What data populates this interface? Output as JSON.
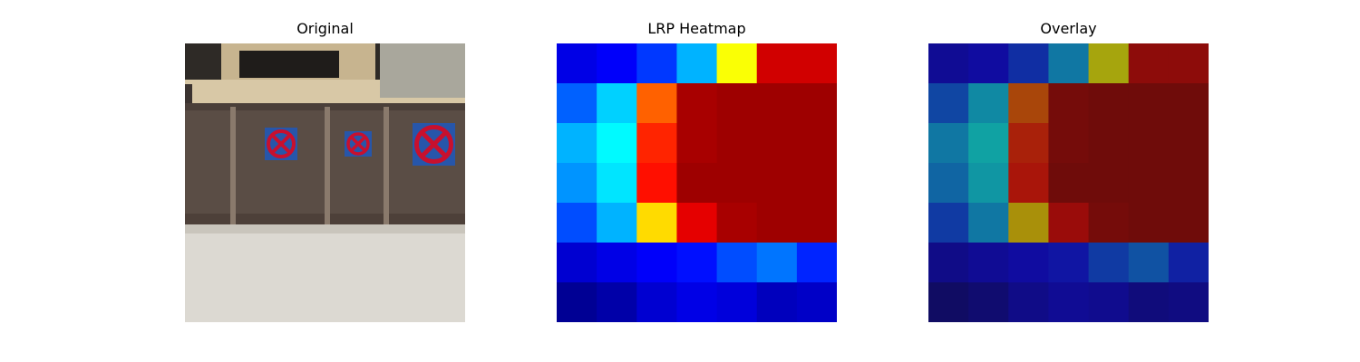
{
  "figure": {
    "panels": [
      {
        "title": "Original"
      },
      {
        "title": "LRP Heatmap"
      },
      {
        "title": "Overlay"
      }
    ]
  },
  "chart_data": [
    {
      "type": "image",
      "title": "Original",
      "scene": {
        "description_colors": {
          "sky_ceiling": "#3a3530",
          "building_wall": "#c9b89a",
          "fence": "#5b4e46",
          "fence_post": "#8a7b6e",
          "ground": "#d9d6cf",
          "sign_background": "#2553a8",
          "sign_ring": "#c8102e"
        }
      }
    },
    {
      "type": "heatmap",
      "title": "LRP Heatmap",
      "colormap": "jet",
      "rows": 7,
      "cols": 7,
      "values": [
        [
          0.1,
          0.12,
          0.18,
          0.3,
          0.62,
          0.92,
          0.92
        ],
        [
          0.22,
          0.33,
          0.78,
          0.96,
          0.97,
          0.97,
          0.97
        ],
        [
          0.3,
          0.37,
          0.84,
          0.96,
          0.97,
          0.97,
          0.97
        ],
        [
          0.27,
          0.35,
          0.86,
          0.97,
          0.97,
          0.97,
          0.97
        ],
        [
          0.2,
          0.3,
          0.66,
          0.9,
          0.96,
          0.97,
          0.97
        ],
        [
          0.08,
          0.1,
          0.12,
          0.14,
          0.2,
          0.24,
          0.16
        ],
        [
          0.02,
          0.04,
          0.08,
          0.1,
          0.09,
          0.06,
          0.07
        ]
      ]
    },
    {
      "type": "heatmap",
      "title": "Overlay",
      "colormap": "jet",
      "blend_with": "Original"
    }
  ]
}
